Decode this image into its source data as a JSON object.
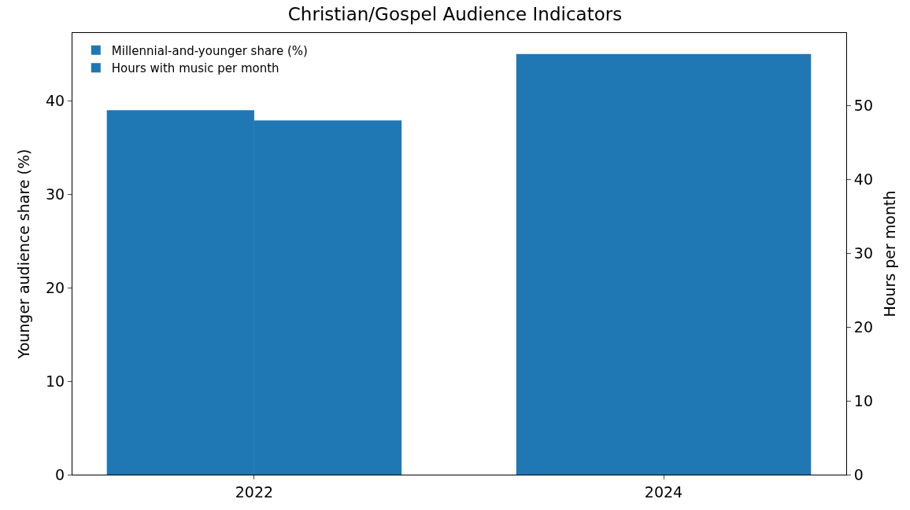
{
  "chart_data": {
    "type": "bar",
    "title": "Christian/Gospel Audience Indicators",
    "ylabel": "Younger audience share (%)",
    "y2label": "Hours per month",
    "categories": [
      "2022",
      "2024"
    ],
    "series": [
      {
        "name": "Millennial-and-younger share (%)",
        "color": "#1f77b4",
        "values": [
          39,
          45
        ]
      },
      {
        "name": "Hours with music per month",
        "color": "#1f77b4",
        "values": [
          48,
          57
        ],
        "axis": "y2"
      }
    ],
    "ylim": [
      0,
      47.25
    ],
    "yticks": [
      0,
      10,
      20,
      30,
      40
    ],
    "y2lim": [
      0,
      59.85
    ],
    "y2ticks": [
      0,
      10,
      20,
      30,
      40,
      50
    ],
    "legend": "top left"
  }
}
